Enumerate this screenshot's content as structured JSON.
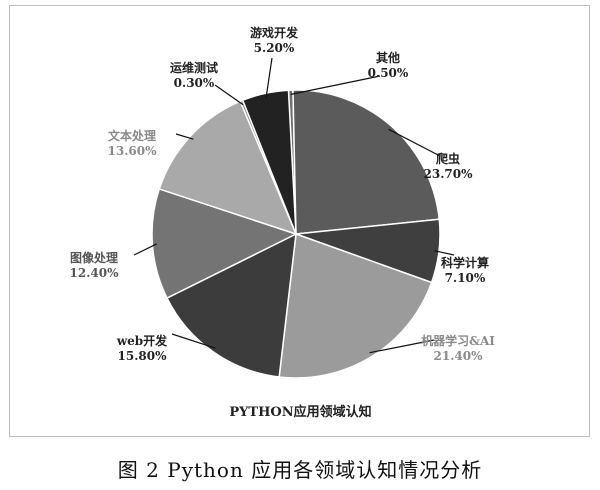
{
  "chart_data": {
    "type": "pie",
    "title": "PYTHON应用领域认知",
    "slices": [
      {
        "label": "其他",
        "value_text": "0.50%",
        "value": 0.5,
        "color": "#6e6e6e",
        "text_color": "#222222"
      },
      {
        "label": "爬虫",
        "value_text": "23.70%",
        "value": 23.7,
        "color": "#5b5b5b",
        "text_color": "#222222"
      },
      {
        "label": "科学计算",
        "value_text": "7.10%",
        "value": 7.1,
        "color": "#3f3f3f",
        "text_color": "#222222"
      },
      {
        "label": "机器学习&AI",
        "value_text": "21.40%",
        "value": 21.4,
        "color": "#9b9b9b",
        "text_color": "#8a8a8a"
      },
      {
        "label": "web开发",
        "value_text": "15.80%",
        "value": 15.8,
        "color": "#3c3c3c",
        "text_color": "#222222"
      },
      {
        "label": "图像处理",
        "value_text": "12.40%",
        "value": 12.4,
        "color": "#747474",
        "text_color": "#555555"
      },
      {
        "label": "文本处理",
        "value_text": "13.60%",
        "value": 13.6,
        "color": "#a9a9a9",
        "text_color": "#8a8a8a"
      },
      {
        "label": "运维测试",
        "value_text": "0.30%",
        "value": 0.3,
        "color": "#8a8a8a",
        "text_color": "#222222"
      },
      {
        "label": "游戏开发",
        "value_text": "5.20%",
        "value": 5.2,
        "color": "#222222",
        "text_color": "#222222"
      }
    ]
  },
  "caption": "图 2 Python 应用各领域认知情况分析"
}
